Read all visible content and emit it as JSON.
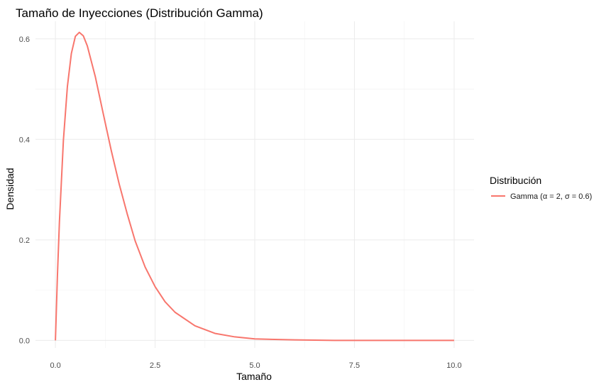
{
  "chart_data": {
    "type": "line",
    "title": "Tamaño de Inyecciones (Distribución Gamma)",
    "xlabel": "Tamaño",
    "ylabel": "Densidad",
    "xlim": [
      -0.5,
      10.5
    ],
    "ylim": [
      -0.015,
      0.635
    ],
    "x_ticks": [
      "0.0",
      "2.5",
      "5.0",
      "7.5",
      "10.0"
    ],
    "y_ticks": [
      "0.0",
      "0.2",
      "0.4",
      "0.6"
    ],
    "grid": true,
    "legend": {
      "title": "Distribución",
      "placement": "right"
    },
    "series": [
      {
        "name": "Gamma (α = 2, σ = 0.6)",
        "color": "#f8766d",
        "x": [
          0,
          0.05,
          0.1,
          0.2,
          0.3,
          0.4,
          0.5,
          0.6,
          0.7,
          0.8,
          1.0,
          1.2,
          1.4,
          1.6,
          1.8,
          2.0,
          2.25,
          2.5,
          2.75,
          3.0,
          3.5,
          4.0,
          4.5,
          5.0,
          5.5,
          6.0,
          7.0,
          8.0,
          9.0,
          10.0
        ],
        "y": [
          0,
          0.128,
          0.235,
          0.398,
          0.505,
          0.571,
          0.605,
          0.613,
          0.606,
          0.586,
          0.525,
          0.451,
          0.378,
          0.311,
          0.252,
          0.198,
          0.146,
          0.107,
          0.077,
          0.056,
          0.029,
          0.014,
          0.007,
          0.003,
          0.002,
          0.001,
          0.0,
          0.0,
          0.0,
          0.0
        ]
      }
    ]
  }
}
